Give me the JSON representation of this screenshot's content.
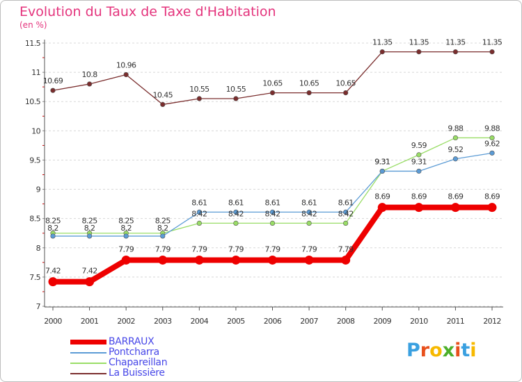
{
  "page": {
    "title": "Evolution du Taux de Taxe d'Habitation",
    "unit_label": "(en %)",
    "logo_text": "Proxiti"
  },
  "chart_data": {
    "type": "line",
    "title": "Evolution du Taux de Taxe d'Habitation",
    "ylabel": "(en %)",
    "xlabel": "",
    "x": [
      "2000",
      "2001",
      "2002",
      "2003",
      "2004",
      "2005",
      "2006",
      "2007",
      "2008",
      "2009",
      "2010",
      "2011",
      "2012"
    ],
    "ylim": [
      7,
      11.5
    ],
    "yticks": [
      7,
      7.5,
      8,
      8.5,
      9,
      9.5,
      10,
      10.5,
      11,
      11.5
    ],
    "grid": "horizontal dashed",
    "legend_position": "bottom-left",
    "series": [
      {
        "name": "BARRAUX",
        "color": "#ee0000",
        "style": "thick",
        "values": [
          7.42,
          7.42,
          7.79,
          7.79,
          7.79,
          7.79,
          7.79,
          7.79,
          7.79,
          8.69,
          8.69,
          8.69,
          8.69
        ],
        "labels": [
          "7.42",
          "7.42",
          "7.79",
          "7.79",
          "7.79",
          "7.79",
          "7.79",
          "7.79",
          "7.79",
          "8.69",
          "8.69",
          "8.69",
          "8.69"
        ]
      },
      {
        "name": "Pontcharra",
        "color": "#5b9bd5",
        "style": "thin",
        "values": [
          8.2,
          8.2,
          8.2,
          8.2,
          8.61,
          8.61,
          8.61,
          8.61,
          8.61,
          9.31,
          9.31,
          9.52,
          9.62
        ],
        "labels": [
          "8.2",
          "8.2",
          "8.2",
          "8.2",
          "8.61",
          "8.61",
          "8.61",
          "8.61",
          "8.61",
          "9.31",
          "9.31",
          "9.52",
          "9.62"
        ]
      },
      {
        "name": "Chapareillan",
        "color": "#99dd66",
        "style": "thin",
        "values": [
          8.25,
          8.25,
          8.25,
          8.25,
          8.42,
          8.42,
          8.42,
          8.42,
          8.42,
          9.31,
          9.59,
          9.88,
          9.88
        ],
        "labels": [
          "8.25",
          "8.25",
          "8.25",
          "8.25",
          "8.42",
          "8.42",
          "8.42",
          "8.42",
          "8.42",
          "9.31",
          "9.59",
          "9.88",
          "9.88"
        ]
      },
      {
        "name": "La Buissière",
        "color": "#7a2d2d",
        "style": "thin",
        "values": [
          10.69,
          10.8,
          10.96,
          10.45,
          10.55,
          10.55,
          10.65,
          10.65,
          10.65,
          11.35,
          11.35,
          11.35,
          11.35
        ],
        "labels": [
          "10.69",
          "10.8",
          "10.96",
          "10.45",
          "10.55",
          "10.55",
          "10.65",
          "10.65",
          "10.65",
          "11.35",
          "11.35",
          "11.35",
          "11.35"
        ]
      }
    ]
  },
  "logo_letter_colors": [
    "#3aa0e0",
    "#e8501c",
    "#f7b900",
    "#4caf2a",
    "#e8501c",
    "#3aa0e0",
    "#f7b900"
  ]
}
